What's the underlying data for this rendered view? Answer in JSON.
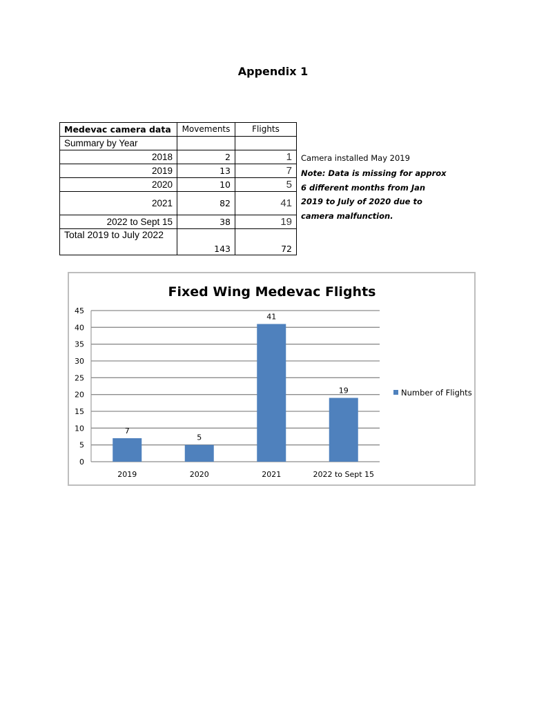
{
  "heading": "Appendix 1",
  "table": {
    "headers": [
      "Medevac camera data",
      "Movements",
      "Flights"
    ],
    "section_label": "Summary by Year",
    "rows": [
      {
        "label": "2018",
        "movements": "2",
        "flights": "1"
      },
      {
        "label": "2019",
        "movements": "13",
        "flights": "7"
      },
      {
        "label": "2020",
        "movements": "10",
        "flights": "5"
      },
      {
        "label": "2021",
        "movements": "82",
        "flights": "41"
      },
      {
        "label": "2022 to Sept 15",
        "movements": "38",
        "flights": "19"
      }
    ],
    "total": {
      "label": "Total 2019 to July 2022",
      "movements": "143",
      "flights": "72"
    }
  },
  "side_note": {
    "camera": "Camera installed May 2019",
    "note": "Note: Data is missing for approx 6 different months from Jan 2019 to July of 2020 due to camera malfunction."
  },
  "chart_data": {
    "type": "bar",
    "title": "Fixed Wing Medevac Flights",
    "categories": [
      "2019",
      "2020",
      "2021",
      "2022 to Sept 15"
    ],
    "series": [
      {
        "name": "Number of Flights",
        "values": [
          7,
          5,
          41,
          19
        ],
        "color": "#4f81bd"
      }
    ],
    "ylim": [
      0,
      45
    ],
    "yticks": [
      0,
      5,
      10,
      15,
      20,
      25,
      30,
      35,
      40,
      45
    ],
    "grid": true,
    "legend": "right",
    "xlabel": "",
    "ylabel": ""
  }
}
